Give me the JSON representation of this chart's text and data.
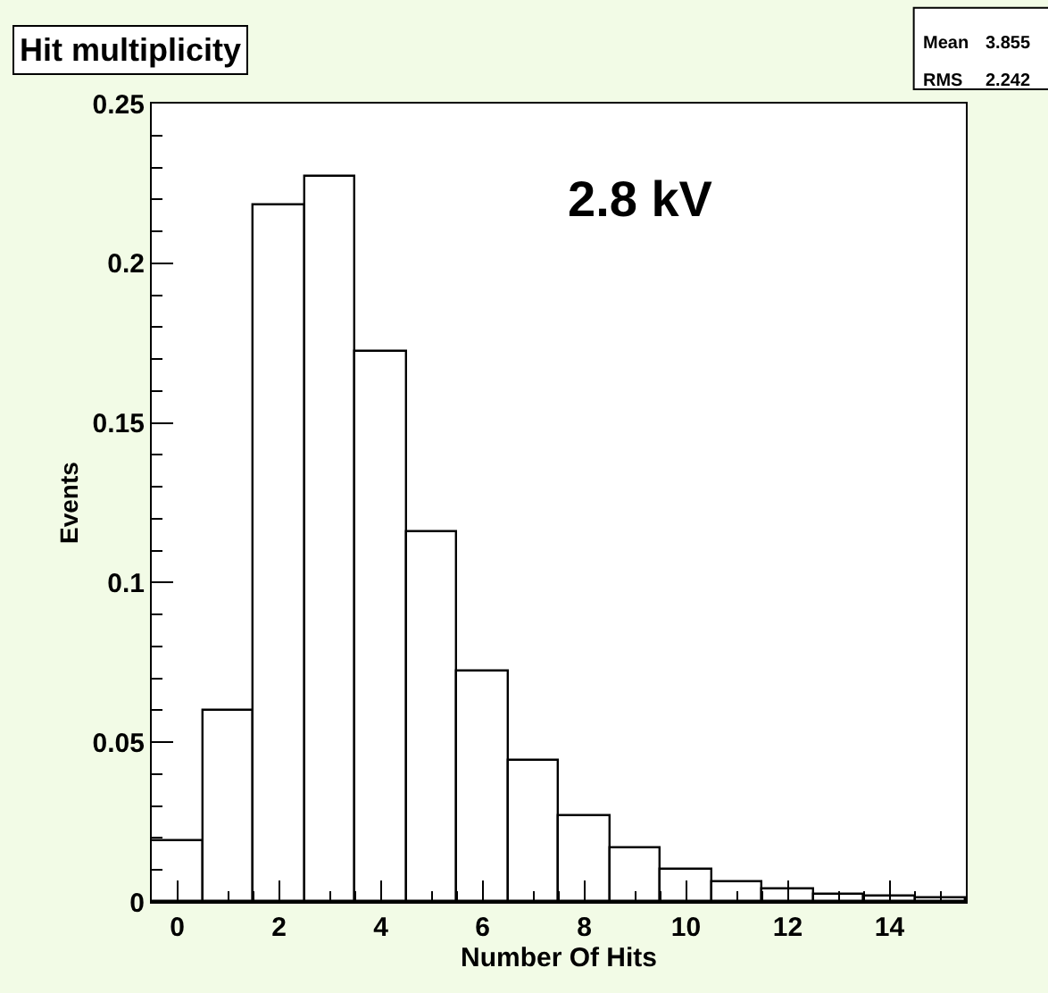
{
  "chart_data": {
    "type": "histogram",
    "title": "Hit multiplicity",
    "xlabel": "Number Of Hits",
    "ylabel": "Events",
    "bins": [
      -0.5,
      0.5,
      1.5,
      2.5,
      3.5,
      4.5,
      5.5,
      6.5,
      7.5,
      8.5,
      9.5,
      10.5,
      11.5,
      12.5,
      13.5,
      14.5,
      15.5
    ],
    "values": [
      0.019,
      0.06,
      0.218,
      0.227,
      0.172,
      0.116,
      0.072,
      0.044,
      0.027,
      0.017,
      0.01,
      0.006,
      0.004,
      0.0025,
      0.0015,
      0.001
    ],
    "color": "#000000",
    "xlim": [
      -0.5,
      15.5
    ],
    "xticks": [
      0,
      2,
      4,
      6,
      8,
      10,
      12,
      14
    ],
    "ylim": [
      0,
      0.25
    ],
    "yticks": [
      0,
      0.05,
      0.1,
      0.15,
      0.2,
      0.25
    ],
    "legend": false,
    "annotations": [
      {
        "text": "2.8 kV"
      },
      {
        "text": "Mean"
      },
      {
        "text": "3.855"
      },
      {
        "text": "RMS"
      },
      {
        "text": "2.242"
      }
    ]
  }
}
